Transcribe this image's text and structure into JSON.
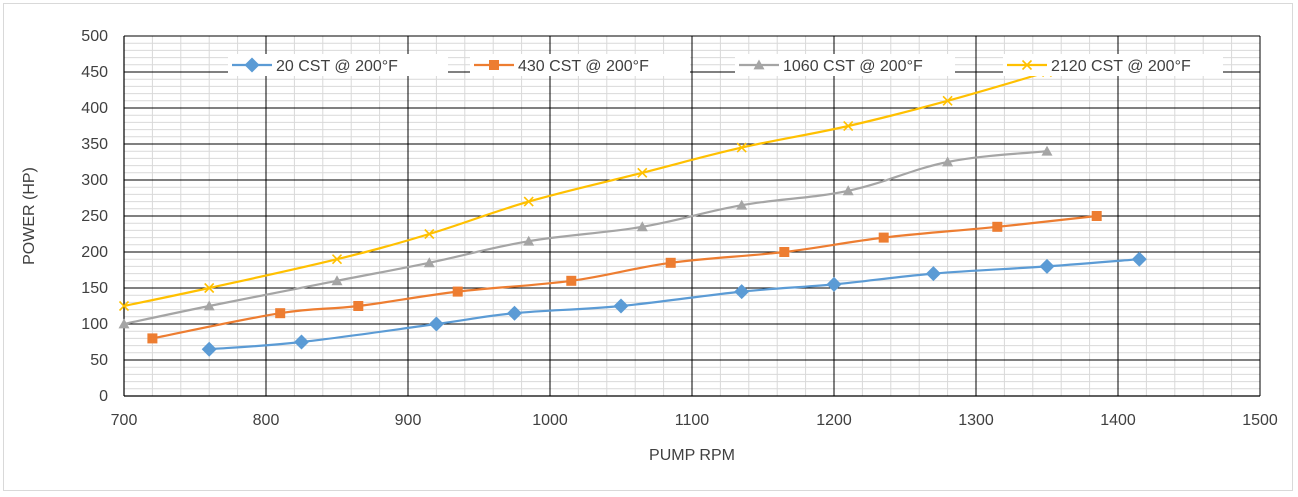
{
  "chart_data": {
    "type": "line",
    "title": "",
    "xlabel": "PUMP RPM",
    "ylabel": "POWER (HP)",
    "xlim": [
      700,
      1500
    ],
    "ylim": [
      0,
      500
    ],
    "x_ticks": [
      700,
      800,
      900,
      1000,
      1100,
      1200,
      1300,
      1400,
      1500
    ],
    "y_ticks": [
      0,
      50,
      100,
      150,
      200,
      250,
      300,
      350,
      400,
      450,
      500
    ],
    "x_minor_step": 20,
    "y_minor_step": 10,
    "grid": true,
    "legend_position": "top-inside",
    "series": [
      {
        "name": "20 CST @ 200°F",
        "color": "#5b9bd5",
        "marker": "diamond",
        "x": [
          760,
          825,
          920,
          975,
          1050,
          1135,
          1200,
          1270,
          1350,
          1415
        ],
        "y": [
          65,
          75,
          100,
          115,
          125,
          145,
          155,
          170,
          180,
          190
        ]
      },
      {
        "name": "430 CST @ 200°F",
        "color": "#ed7d31",
        "marker": "square",
        "x": [
          720,
          810,
          865,
          935,
          1015,
          1085,
          1165,
          1235,
          1315,
          1385
        ],
        "y": [
          80,
          115,
          125,
          145,
          160,
          185,
          200,
          220,
          235,
          250
        ]
      },
      {
        "name": "1060 CST @ 200°F",
        "color": "#a5a5a5",
        "marker": "triangle",
        "x": [
          700,
          760,
          850,
          915,
          985,
          1065,
          1135,
          1210,
          1280,
          1350
        ],
        "y": [
          100,
          125,
          160,
          185,
          215,
          235,
          265,
          285,
          325,
          340
        ]
      },
      {
        "name": "2120 CST @ 200°F",
        "color": "#ffc000",
        "marker": "x",
        "x": [
          700,
          760,
          850,
          915,
          985,
          1065,
          1135,
          1210,
          1280,
          1350
        ],
        "y": [
          125,
          150,
          190,
          225,
          270,
          310,
          345,
          375,
          410,
          450
        ]
      }
    ]
  }
}
